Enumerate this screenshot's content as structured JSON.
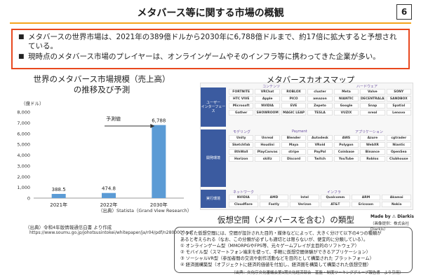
{
  "header": {
    "title": "メタバース等に関する市場の概観",
    "page": "6"
  },
  "summary": {
    "bullets": [
      "メタバースの世界市場は、2021年の389億ドルから2030年に6,788億ドルまで、約17倍に拡大すると予想されている。",
      "現時点のメタバース市場のプレイヤーは、オンラインゲームやそのインフラ等に携わってきた企業が多い。"
    ]
  },
  "market_chart": {
    "title_line1": "世界のメタバース市場規模（売上高）",
    "title_line2": "の推移及び予測",
    "unit_label": "（億ドル）",
    "forecast_label": "予測値",
    "source": "（出典）Statista（Grand View Research）",
    "source2": "（出典）令和4年版情報通信白書 より作成",
    "url": "https://www.soumu.go.jp/johotsusintokei/whitepaper/ja/r04/pdf/n2800000.pdf",
    "bar_color": "#5b9bd5"
  },
  "chart_data": {
    "type": "bar",
    "categories": [
      "2021年",
      "2022年",
      "2030年"
    ],
    "values": [
      388.5,
      474.8,
      6788
    ],
    "value_labels": [
      "388.5",
      "474.8",
      "6,788"
    ],
    "title": "世界のメタバース市場規模（売上高）の推移及び予測",
    "ylabel": "（億ドル）",
    "ylim": [
      0,
      8000
    ],
    "yticks": [
      0,
      1000,
      2000,
      3000,
      4000,
      5000,
      6000,
      7000,
      8000
    ],
    "ytick_labels": [
      "0",
      "1,000",
      "2,000",
      "3,000",
      "4,000",
      "5,000",
      "6,000",
      "7,000",
      "8,000"
    ],
    "grid": false
  },
  "chaos_map": {
    "title": "メタバースカオスマップ",
    "side_labels": [
      "ユーザー\nインターフェース",
      "開発環境",
      "実行環境"
    ],
    "categories": [
      "コンテンツ",
      "ハードウェア",
      "Payment",
      "アプリケーション",
      "モデリング",
      "インフラ",
      "ネットワーク"
    ],
    "logos_top": [
      "FORTNITE",
      "VRChat",
      "ROBLOX",
      "cluster",
      "Meta",
      "Valve",
      "SONY",
      "HTC VIVE",
      "Apple",
      "PICO",
      "amazon",
      "NIANTIC",
      "DECENTRALAND",
      "SANDBOX",
      "Microsoft",
      "NVIDIA",
      "EVE",
      "Zepeto",
      "Google",
      "Snap",
      "Spatial",
      "Gather",
      "SHOWROOM",
      "MAGIC LEAP",
      "TESLA",
      "VUZIX",
      "nreal",
      "Lenovo"
    ],
    "logos_mid": [
      "Unity",
      "Unreal",
      "Blender",
      "Autodesk",
      "AWS",
      "Azure",
      "cgtrader",
      "Sketchfab",
      "Houdini",
      "Maya",
      "VRoid",
      "Polygon",
      "WebXR",
      "Niantic",
      "8thWall",
      "PlayCanvas",
      "stripe",
      "PayPal",
      "Coinbase",
      "Binance",
      "OpenSea",
      "Horizon",
      "skillz",
      "Discord",
      "Twitch",
      "YouTube",
      "Roblox",
      "Clubhouse"
    ],
    "logos_bottom": [
      "NVIDIA",
      "AMD",
      "Intel",
      "Qualcomm",
      "ARM",
      "Akamai",
      "Cloudflare",
      "Fastly",
      "Verizon",
      "AT&T",
      "Ericsson",
      "Nokia"
    ],
    "made_by": "Made by ⚠ Diarkis",
    "credit": "（画像提供：株式会社Diarkis）"
  },
  "virtual_space": {
    "title": "仮想空間（メタバースを含む）の類型",
    "lines": [
      "こうした仮想空間には、空間が設計された目的・媒体などによって、大きく分けて以下の4つの種類が",
      "あると考えられる（なお、この分類が必ずしも適切とは限らないが、便宜的に分類している）。",
      "① オンラインゲーム型（MMORPGやFPS等、元々ゲームプレイが主目的のソフトウェア）",
      "② モバイル型（スマートフォン端末を使って、手軽に仮想空間体験ができるアプリケーション）",
      "③ ソーシャルVR型（参加者間の交流や創作活動などを目的として構築された プラットフォーム）",
      "④ 経済圏構築型（オブジェクトに経済的価値を付加し、経済圏を構築して構築された仮想空間）"
    ]
  },
  "footer": "（出典：文化庁文化審議会第1期文化経済部会　基盤・制度ワーキンググループ報告書　より引用）"
}
